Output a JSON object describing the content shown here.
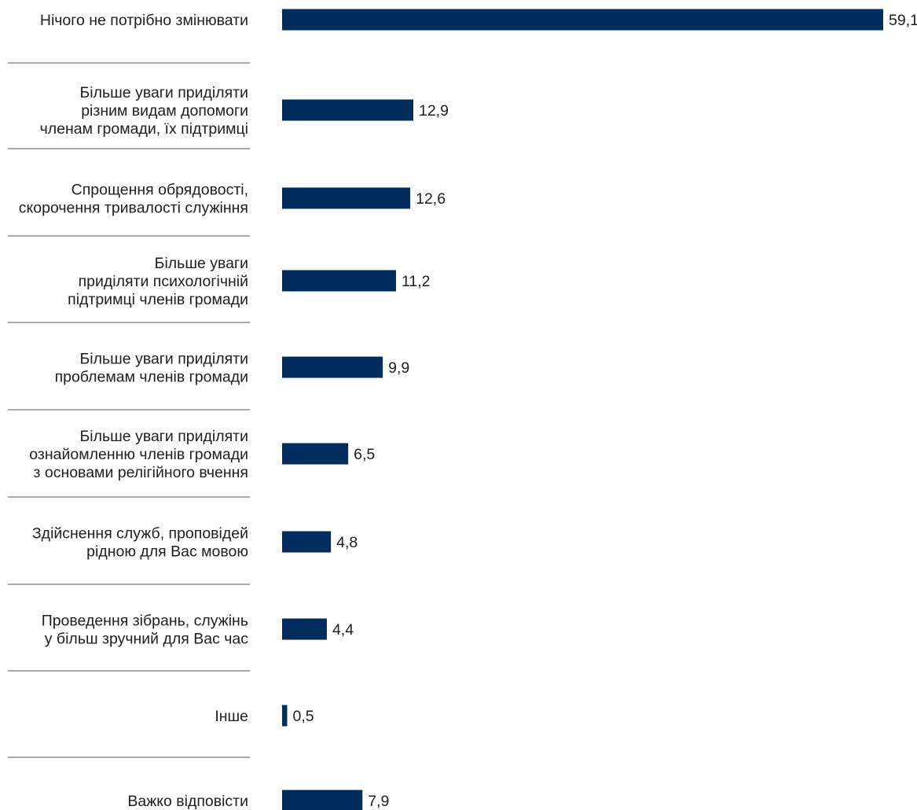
{
  "colors": {
    "bar": "#002d5c",
    "separator": "#555555",
    "text": "#1e1e1e"
  },
  "chart_data": {
    "type": "bar",
    "orientation": "horizontal",
    "title": "",
    "xlabel": "",
    "ylabel": "",
    "grid": false,
    "xlim": [
      0,
      59.1
    ],
    "categories": [
      [
        "Нічого не потрібно змінювати"
      ],
      [
        "Більше уваги приділяти",
        "різним видам допомоги",
        "членам громади, їх підтримці"
      ],
      [
        "Спрощення обрядовості,",
        "скорочення тривалості служіння"
      ],
      [
        "Більше уваги",
        "приділяти психологічній",
        "підтримці членів громади"
      ],
      [
        "Більше уваги приділяти",
        "проблемам членів громади"
      ],
      [
        "Більше уваги приділяти",
        "ознайомленню членів громади",
        "з основами релігійного вчення"
      ],
      [
        "Здійснення служб, проповідей",
        "рідною для Вас мовою"
      ],
      [
        "Проведення зібрань, служінь",
        "у більш зручний для Вас час"
      ],
      [
        "Інше"
      ],
      [
        "Важко відповісти"
      ]
    ],
    "values": [
      59.1,
      12.9,
      12.6,
      11.2,
      9.9,
      6.5,
      4.8,
      4.4,
      0.5,
      7.9
    ],
    "value_labels": [
      "59,1",
      "12,9",
      "12,6",
      "11,2",
      "9,9",
      "6,5",
      "4,8",
      "4,4",
      "0,5",
      "7,9"
    ]
  }
}
